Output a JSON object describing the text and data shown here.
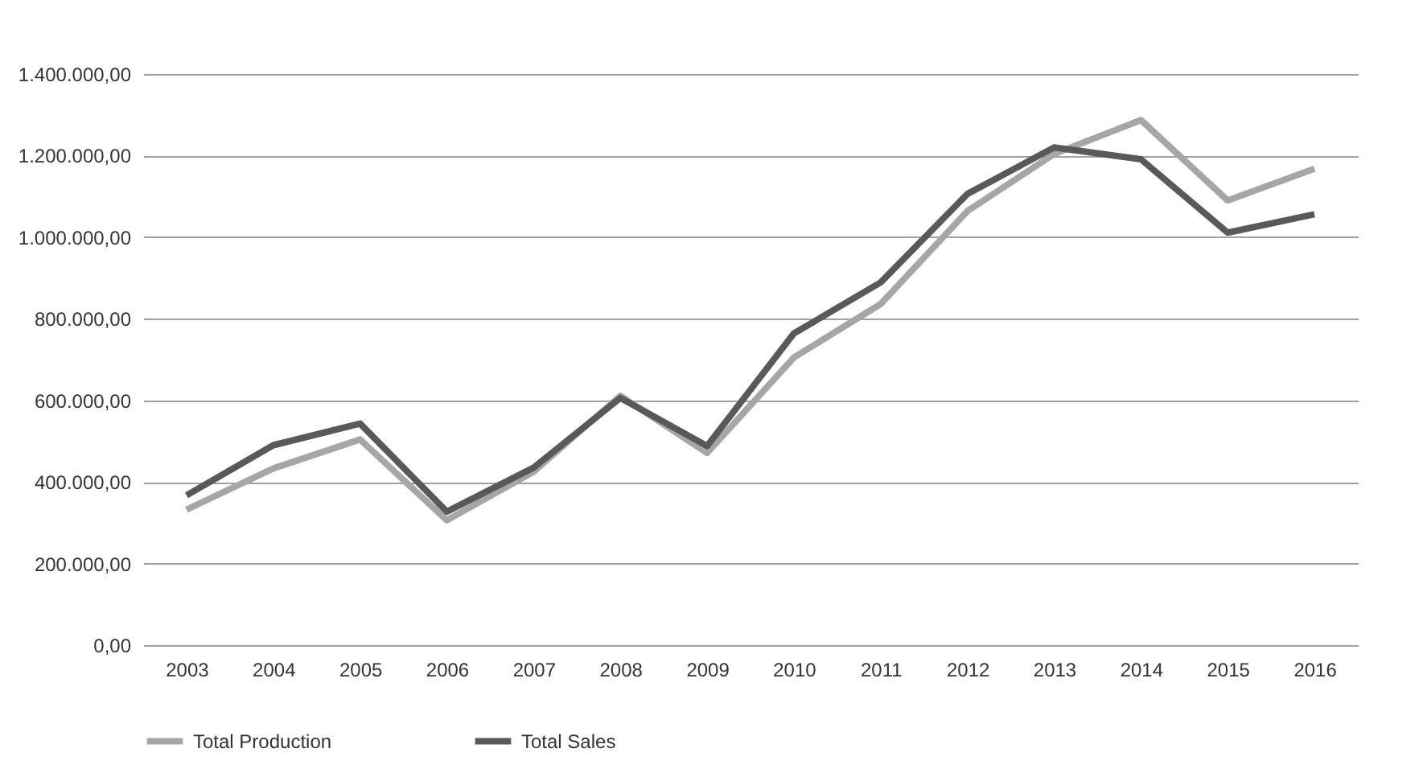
{
  "chart_data": {
    "type": "line",
    "categories": [
      "2003",
      "2004",
      "2005",
      "2006",
      "2007",
      "2008",
      "2009",
      "2010",
      "2011",
      "2012",
      "2013",
      "2014",
      "2015",
      "2016"
    ],
    "series": [
      {
        "name": "Total Production",
        "color": "#a6a6a6",
        "values": [
          332000,
          433000,
          504000,
          306000,
          425000,
          611000,
          471000,
          705000,
          836000,
          1064000,
          1204000,
          1287000,
          1090000,
          1168000
        ]
      },
      {
        "name": "Total Sales",
        "color": "#595959",
        "values": [
          367000,
          490000,
          543000,
          327000,
          435000,
          606000,
          488000,
          764000,
          889000,
          1106000,
          1220000,
          1191000,
          1011000,
          1056000
        ]
      }
    ],
    "ylim": [
      0,
      1400000
    ],
    "yticks": [
      {
        "value": 0,
        "label": "0,00"
      },
      {
        "value": 200000,
        "label": "200.000,00"
      },
      {
        "value": 400000,
        "label": "400.000,00"
      },
      {
        "value": 600000,
        "label": "600.000,00"
      },
      {
        "value": 800000,
        "label": "800.000,00"
      },
      {
        "value": 1000000,
        "label": "1.000.000,00"
      },
      {
        "value": 1200000,
        "label": "1.200.000,00"
      },
      {
        "value": 1400000,
        "label": "1.400.000,00"
      }
    ],
    "grid": "y",
    "legend": "bottom",
    "marker": "none",
    "line_style": "solid"
  }
}
